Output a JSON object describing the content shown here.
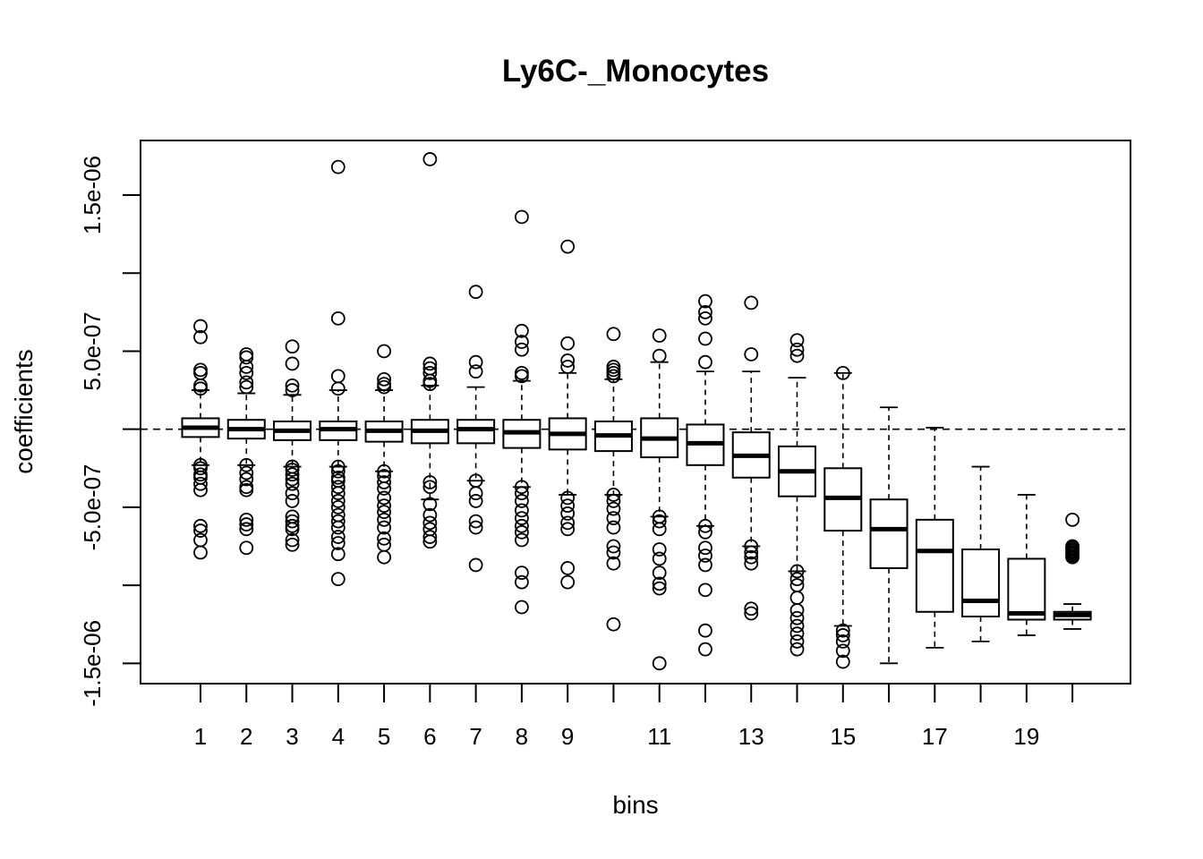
{
  "chart_data": {
    "type": "boxplot",
    "title": "Ly6C-_Monocytes",
    "xlabel": "bins",
    "ylabel": "coefficients",
    "ylim": [
      -1.63e-06,
      1.85e-06
    ],
    "y_ticks": [
      -1.5e-06,
      -1e-06,
      -5e-07,
      0,
      5e-07,
      1e-06,
      1.5e-06
    ],
    "y_tick_labels": [
      "-1.5e-06",
      "",
      "-5.0e-07",
      "",
      "5.0e-07",
      "",
      "1.5e-06"
    ],
    "x_ticks": [
      1,
      2,
      3,
      4,
      5,
      6,
      7,
      8,
      9,
      10,
      11,
      12,
      13,
      14,
      15,
      16,
      17,
      18,
      19,
      20
    ],
    "x_tick_labels": [
      "1",
      "2",
      "3",
      "4",
      "5",
      "6",
      "7",
      "8",
      "9",
      "",
      "11",
      "",
      "13",
      "",
      "15",
      "",
      "17",
      "",
      "19",
      ""
    ],
    "reference_line": 0,
    "grid": false,
    "bins": [
      {
        "bin": 1,
        "whisker_low": -2.3e-07,
        "q1": -5e-08,
        "median": 1e-08,
        "q3": 7e-08,
        "whisker_high": 2.5e-07,
        "outliers": [
          6.6e-07,
          5.9e-07,
          3.8e-07,
          3.6e-07,
          2.8e-07,
          2.6e-07,
          -2.3e-07,
          -2.5e-07,
          -2.9e-07,
          -3.1e-07,
          -3.5e-07,
          -3.9e-07,
          -6.2e-07,
          -6.5e-07,
          -7.1e-07,
          -7.9e-07
        ]
      },
      {
        "bin": 2,
        "whisker_low": -2.3e-07,
        "q1": -6e-08,
        "median": 0,
        "q3": 6e-08,
        "whisker_high": 2.3e-07,
        "outliers": [
          4.8e-07,
          4.6e-07,
          4e-07,
          3.6e-07,
          3e-07,
          2.7e-07,
          -2.3e-07,
          -2.8e-07,
          -3.2e-07,
          -3.7e-07,
          -3.9e-07,
          -5.8e-07,
          -6.1e-07,
          -6.4e-07,
          -7.6e-07
        ]
      },
      {
        "bin": 3,
        "whisker_low": -2.4e-07,
        "q1": -7e-08,
        "median": -1e-08,
        "q3": 5e-08,
        "whisker_high": 2.2e-07,
        "outliers": [
          5.3e-07,
          4.2e-07,
          2.8e-07,
          2.5e-07,
          -2.4e-07,
          -2.6e-07,
          -2.9e-07,
          -3.2e-07,
          -3.5e-07,
          -4.1e-07,
          -4.6e-07,
          -5.6e-07,
          -5.9e-07,
          -6.2e-07,
          -6.4e-07,
          -7.1e-07,
          -7.4e-07
        ]
      },
      {
        "bin": 4,
        "whisker_low": -2.4e-07,
        "q1": -7e-08,
        "median": 0,
        "q3": 5e-08,
        "whisker_high": 2.5e-07,
        "outliers": [
          1.68e-06,
          7.1e-07,
          3.4e-07,
          2.6e-07,
          -2.4e-07,
          -2.7e-07,
          -3.1e-07,
          -3.3e-07,
          -3.7e-07,
          -4.1e-07,
          -4.6e-07,
          -5e-07,
          -5.5e-07,
          -5.9e-07,
          -6.3e-07,
          -6.9e-07,
          -7.3e-07,
          -8e-07,
          -9.6e-07
        ]
      },
      {
        "bin": 5,
        "whisker_low": -2.7e-07,
        "q1": -8e-08,
        "median": -1e-08,
        "q3": 5e-08,
        "whisker_high": 2.5e-07,
        "outliers": [
          5e-07,
          3.2e-07,
          2.9e-07,
          2.7e-07,
          -2.7e-07,
          -3e-07,
          -3.4e-07,
          -3.8e-07,
          -4.4e-07,
          -4.9e-07,
          -5.3e-07,
          -5.8e-07,
          -6.3e-07,
          -7e-07,
          -7.4e-07,
          -8.2e-07
        ]
      },
      {
        "bin": 6,
        "whisker_low": -4.5e-07,
        "q1": -9e-08,
        "median": -1e-08,
        "q3": 6e-08,
        "whisker_high": 2.8e-07,
        "outliers": [
          1.73e-06,
          4.2e-07,
          3.9e-07,
          3.6e-07,
          3.1e-07,
          2.9e-07,
          -3.4e-07,
          -3.7e-07,
          -4.8e-07,
          -5.5e-07,
          -6e-07,
          -6.4e-07,
          -6.9e-07,
          -7.2e-07
        ]
      },
      {
        "bin": 7,
        "whisker_low": -3.3e-07,
        "q1": -9e-08,
        "median": 0,
        "q3": 6e-08,
        "whisker_high": 2.7e-07,
        "outliers": [
          8.8e-07,
          4.3e-07,
          3.7e-07,
          -3.3e-07,
          -4.1e-07,
          -4.6e-07,
          -5.9e-07,
          -6.3e-07,
          -8.7e-07
        ]
      },
      {
        "bin": 8,
        "whisker_low": -3.7e-07,
        "q1": -1.2e-07,
        "median": -2e-08,
        "q3": 6e-08,
        "whisker_high": 3.1e-07,
        "outliers": [
          1.36e-06,
          6.3e-07,
          5.6e-07,
          5.1e-07,
          3.6e-07,
          3.4e-07,
          -3.7e-07,
          -4.1e-07,
          -4.6e-07,
          -5.2e-07,
          -5.7e-07,
          -6.2e-07,
          -6.6e-07,
          -7.1e-07,
          -9.2e-07,
          -9.8e-07,
          -1.14e-06
        ]
      },
      {
        "bin": 9,
        "whisker_low": -4.2e-07,
        "q1": -1.3e-07,
        "median": -3e-08,
        "q3": 7e-08,
        "whisker_high": 3.6e-07,
        "outliers": [
          1.17e-06,
          5.5e-07,
          4.4e-07,
          4e-07,
          -4.4e-07,
          -4.9e-07,
          -5.4e-07,
          -6e-07,
          -6.4e-07,
          -8.9e-07,
          -9.8e-07
        ]
      },
      {
        "bin": 10,
        "whisker_low": -4.2e-07,
        "q1": -1.4e-07,
        "median": -4e-08,
        "q3": 5e-08,
        "whisker_high": 3.2e-07,
        "outliers": [
          6.1e-07,
          4e-07,
          3.8e-07,
          3.6e-07,
          3.4e-07,
          -4.2e-07,
          -4.6e-07,
          -5.1e-07,
          -5.7e-07,
          -6.3e-07,
          -7.5e-07,
          -7.9e-07,
          -8.6e-07,
          -1.25e-06
        ]
      },
      {
        "bin": 11,
        "whisker_low": -5.6e-07,
        "q1": -1.8e-07,
        "median": -6e-08,
        "q3": 7e-08,
        "whisker_high": 4.3e-07,
        "outliers": [
          6e-07,
          4.7e-07,
          -5.6e-07,
          -5.9e-07,
          -6.4e-07,
          -7.7e-07,
          -8.3e-07,
          -9.2e-07,
          -9.9e-07,
          -1.02e-06,
          -1.5e-06
        ]
      },
      {
        "bin": 12,
        "whisker_low": -6.2e-07,
        "q1": -2.3e-07,
        "median": -9e-08,
        "q3": 3e-08,
        "whisker_high": 3.7e-07,
        "outliers": [
          8.2e-07,
          7.5e-07,
          7.1e-07,
          5.8e-07,
          4.3e-07,
          -6.2e-07,
          -6.6e-07,
          -7.6e-07,
          -8.1e-07,
          -8.7e-07,
          -1.03e-06,
          -1.29e-06,
          -1.41e-06
        ]
      },
      {
        "bin": 13,
        "whisker_low": -7.5e-07,
        "q1": -3.1e-07,
        "median": -1.7e-07,
        "q3": -2e-08,
        "whisker_high": 3.7e-07,
        "outliers": [
          8.1e-07,
          4.8e-07,
          -7.5e-07,
          -7.9e-07,
          -8.2e-07,
          -8.6e-07,
          -1.15e-06,
          -1.18e-06
        ]
      },
      {
        "bin": 14,
        "whisker_low": -9.1e-07,
        "q1": -4.3e-07,
        "median": -2.7e-07,
        "q3": -1.1e-07,
        "whisker_high": 3.3e-07,
        "outliers": [
          5.7e-07,
          5.1e-07,
          4.7e-07,
          -9.1e-07,
          -9.6e-07,
          -1e-06,
          -1.08e-06,
          -1.16e-06,
          -1.21e-06,
          -1.26e-06,
          -1.31e-06,
          -1.36e-06,
          -1.41e-06
        ]
      },
      {
        "bin": 15,
        "whisker_low": -1.26e-06,
        "q1": -6.5e-07,
        "median": -4.4e-07,
        "q3": -2.5e-07,
        "whisker_high": 3.6e-07,
        "outliers": [
          3.6e-07,
          -1.29e-06,
          -1.32e-06,
          -1.36e-06,
          -1.42e-06,
          -1.49e-06
        ]
      },
      {
        "bin": 16,
        "whisker_low": -1.5e-06,
        "q1": -8.9e-07,
        "median": -6.4e-07,
        "q3": -4.5e-07,
        "whisker_high": 1.4e-07,
        "outliers": []
      },
      {
        "bin": 17,
        "whisker_low": -1.4e-06,
        "q1": -1.17e-06,
        "median": -7.8e-07,
        "q3": -5.8e-07,
        "whisker_high": 1e-08,
        "outliers": []
      },
      {
        "bin": 18,
        "whisker_low": -1.36e-06,
        "q1": -1.2e-06,
        "median": -1.1e-06,
        "q3": -7.7e-07,
        "whisker_high": -2.4e-07,
        "outliers": []
      },
      {
        "bin": 19,
        "whisker_low": -1.32e-06,
        "q1": -1.22e-06,
        "median": -1.18e-06,
        "q3": -8.3e-07,
        "whisker_high": -4.2e-07,
        "outliers": []
      },
      {
        "bin": 20,
        "whisker_low": -1.28e-06,
        "q1": -1.22e-06,
        "median": -1.19e-06,
        "q3": -1.17e-06,
        "whisker_high": -1.12e-06,
        "outliers": [
          -5.8e-07,
          -7.5e-07,
          -7.6e-07,
          -7.7e-07,
          -7.8e-07,
          -7.9e-07,
          -8e-07,
          -8.1e-07,
          -8.2e-07
        ]
      }
    ]
  }
}
